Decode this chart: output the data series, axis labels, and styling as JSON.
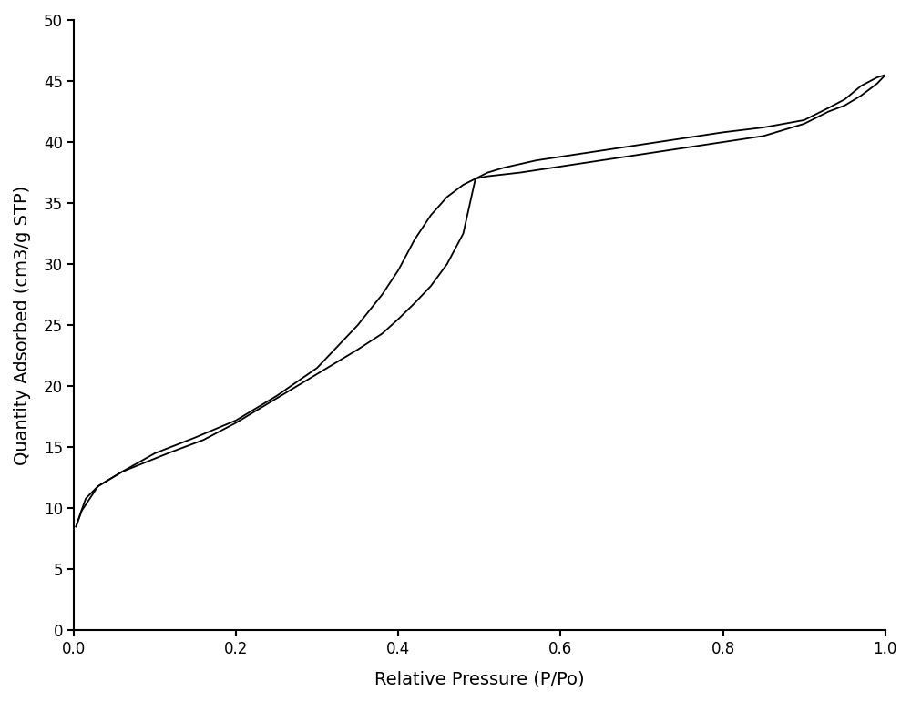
{
  "title": "",
  "xlabel": "Relative Pressure (P/Po)",
  "ylabel": "Quantity Adsorbed (cm3/g STP)",
  "xlim": [
    0.0,
    1.0
  ],
  "ylim": [
    0,
    50
  ],
  "xticks": [
    0.0,
    0.2,
    0.4,
    0.6,
    0.8,
    1.0
  ],
  "yticks": [
    0,
    5,
    10,
    15,
    20,
    25,
    30,
    35,
    40,
    45,
    50
  ],
  "line_color": "#000000",
  "line_width": 1.3,
  "background_color": "#ffffff",
  "adsorption_branch": {
    "x": [
      0.003,
      0.008,
      0.015,
      0.03,
      0.06,
      0.09,
      0.12,
      0.16,
      0.2,
      0.25,
      0.3,
      0.35,
      0.38,
      0.4,
      0.42,
      0.44,
      0.46,
      0.48,
      0.495,
      0.51,
      0.55,
      0.6,
      0.65,
      0.7,
      0.75,
      0.8,
      0.85,
      0.9,
      0.93,
      0.95,
      0.97,
      0.99,
      1.0
    ],
    "y": [
      8.5,
      9.5,
      10.8,
      11.8,
      13.0,
      13.8,
      14.6,
      15.6,
      17.0,
      19.0,
      21.0,
      23.0,
      24.3,
      25.5,
      26.8,
      28.2,
      30.0,
      32.5,
      37.0,
      37.2,
      37.5,
      38.0,
      38.5,
      39.0,
      39.5,
      40.0,
      40.5,
      41.5,
      42.5,
      43.0,
      43.8,
      44.8,
      45.5
    ]
  },
  "desorption_branch": {
    "x": [
      1.0,
      0.99,
      0.97,
      0.95,
      0.93,
      0.9,
      0.85,
      0.8,
      0.75,
      0.7,
      0.65,
      0.6,
      0.57,
      0.55,
      0.53,
      0.51,
      0.495,
      0.48,
      0.46,
      0.44,
      0.42,
      0.4,
      0.38,
      0.35,
      0.3,
      0.25,
      0.2,
      0.15,
      0.1,
      0.06,
      0.03,
      0.01,
      0.003
    ],
    "y": [
      45.5,
      45.3,
      44.6,
      43.5,
      42.8,
      41.8,
      41.2,
      40.8,
      40.3,
      39.8,
      39.3,
      38.8,
      38.5,
      38.2,
      37.9,
      37.5,
      37.0,
      36.5,
      35.5,
      34.0,
      32.0,
      29.5,
      27.5,
      25.0,
      21.5,
      19.2,
      17.2,
      15.8,
      14.5,
      13.0,
      11.8,
      9.8,
      8.5
    ]
  }
}
